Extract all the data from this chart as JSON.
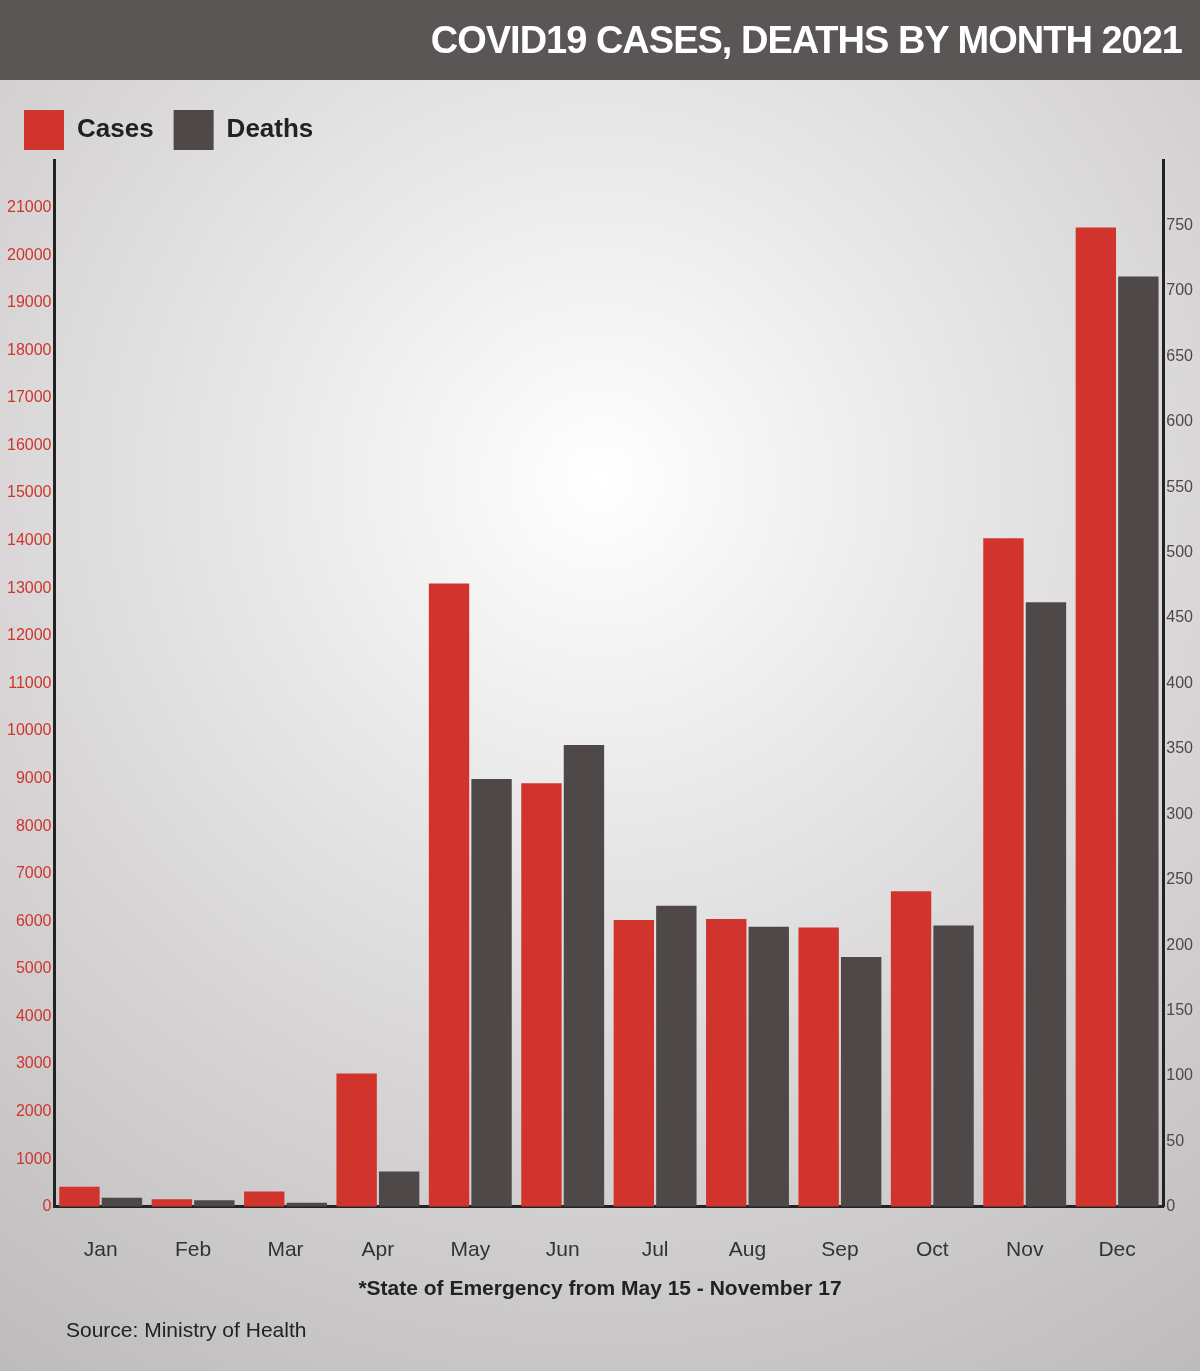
{
  "chart_data": {
    "type": "bar",
    "title": "COVID19 CASES, DEATHS BY MONTH 2021",
    "categories": [
      "Jan",
      "Feb",
      "Mar",
      "Apr",
      "May",
      "Jun",
      "Jul",
      "Aug",
      "Sep",
      "Oct",
      "Nov",
      "Dec"
    ],
    "series": [
      {
        "name": "Cases",
        "color": "#d0342c",
        "values": [
          420,
          160,
          320,
          2800,
          13100,
          8900,
          6030,
          6050,
          5870,
          6630,
          14050,
          20580
        ]
      },
      {
        "name": "Deaths",
        "color": "#4e4848",
        "axis": "y2",
        "values": [
          7,
          5,
          3,
          27,
          327,
          353,
          230,
          214,
          191,
          215,
          462,
          711
        ]
      }
    ],
    "ylim": [
      0,
      22000
    ],
    "yticks": [
      0,
      1000,
      2000,
      3000,
      4000,
      5000,
      6000,
      7000,
      8000,
      9000,
      10000,
      11000,
      12000,
      13000,
      14000,
      15000,
      16000,
      17000,
      18000,
      19000,
      20000,
      21000
    ],
    "y2lim": [
      0,
      800
    ],
    "y2ticks": [
      0,
      50,
      100,
      150,
      200,
      250,
      300,
      350,
      400,
      450,
      500,
      550,
      600,
      650,
      700,
      750
    ],
    "legend": "top left",
    "annotations": [
      "*State of Emergency from May 15 - November 17",
      "Source: Ministry of Health"
    ]
  }
}
